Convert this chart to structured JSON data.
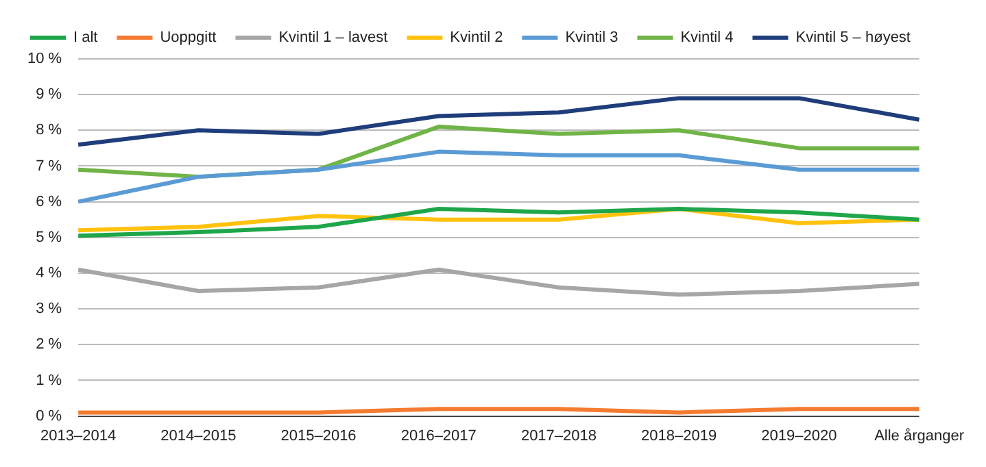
{
  "chart_data": {
    "type": "line",
    "categories": [
      "2013–2014",
      "2014–2015",
      "2015–2016",
      "2016–2017",
      "2017–2018",
      "2018–2019",
      "2019–2020",
      "Alle årganger"
    ],
    "ylim": [
      0,
      10
    ],
    "yticks": [
      {
        "value": 0,
        "label": "0 %"
      },
      {
        "value": 1,
        "label": "1 %"
      },
      {
        "value": 2,
        "label": "2 %"
      },
      {
        "value": 3,
        "label": "3 %"
      },
      {
        "value": 4,
        "label": "4 %"
      },
      {
        "value": 5,
        "label": "5 %"
      },
      {
        "value": 6,
        "label": "6 %"
      },
      {
        "value": 7,
        "label": "7 %"
      },
      {
        "value": 8,
        "label": "8 %"
      },
      {
        "value": 9,
        "label": "9 %"
      },
      {
        "value": 10,
        "label": "10 %"
      }
    ],
    "grid": "y",
    "legend": "top left",
    "marker": "none",
    "line_style": "solid",
    "series": [
      {
        "name": "I alt",
        "color": "#1fa64a",
        "values": [
          5.05,
          5.15,
          5.3,
          5.8,
          5.7,
          5.8,
          5.7,
          5.5
        ]
      },
      {
        "name": "Uoppgitt",
        "color": "#f47b30",
        "values": [
          0.1,
          0.1,
          0.1,
          0.2,
          0.2,
          0.1,
          0.2,
          0.2
        ]
      },
      {
        "name": "Kvintil 1 – lavest",
        "color": "#a6a6a6",
        "values": [
          4.1,
          3.5,
          3.6,
          4.1,
          3.6,
          3.4,
          3.5,
          3.7
        ]
      },
      {
        "name": "Kvintil 2",
        "color": "#ffc20e",
        "values": [
          5.2,
          5.3,
          5.6,
          5.5,
          5.5,
          5.8,
          5.4,
          5.5
        ]
      },
      {
        "name": "Kvintil 3",
        "color": "#5b9bd5",
        "values": [
          6.0,
          6.7,
          6.9,
          7.4,
          7.3,
          7.3,
          6.9,
          6.9
        ]
      },
      {
        "name": "Kvintil 4",
        "color": "#70b447",
        "values": [
          6.9,
          6.7,
          6.9,
          8.1,
          7.9,
          8.0,
          7.5,
          7.5
        ]
      },
      {
        "name": "Kvintil 5 – høyest",
        "color": "#1f3d7a",
        "values": [
          7.6,
          8.0,
          7.9,
          8.4,
          8.5,
          8.9,
          8.9,
          8.3
        ]
      }
    ]
  }
}
